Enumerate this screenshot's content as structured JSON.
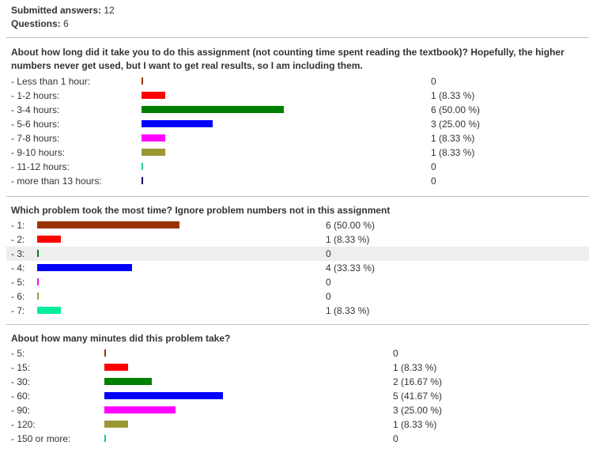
{
  "summary": {
    "submitted_label": "Submitted answers:",
    "submitted_value": "12",
    "questions_label": "Questions:",
    "questions_value": "6"
  },
  "colors": [
    "#993300",
    "#ff0000",
    "#008000",
    "#0000ff",
    "#ff00ff",
    "#999933",
    "#00ffcc",
    "#000066"
  ],
  "questions": [
    {
      "title": "About how long did it take you to do this assignment (not counting time spent reading the textbook)? Hopefully, the higher numbers never get used, but I want to get real results, so I am including them.",
      "answers": [
        {
          "label": "- Less than 1 hour:",
          "count": "0",
          "fraction": 0,
          "color": "#993300"
        },
        {
          "label": "- 1-2 hours:",
          "count": "1 (8.33 %)",
          "fraction": 0.0833,
          "color": "#ff0000"
        },
        {
          "label": "- 3-4 hours:",
          "count": "6 (50.00 %)",
          "fraction": 0.5,
          "color": "#008000"
        },
        {
          "label": "- 5-6 hours:",
          "count": "3 (25.00 %)",
          "fraction": 0.25,
          "color": "#0000ff"
        },
        {
          "label": "- 7-8 hours:",
          "count": "1 (8.33 %)",
          "fraction": 0.0833,
          "color": "#ff00ff"
        },
        {
          "label": "- 9-10 hours:",
          "count": "1 (8.33 %)",
          "fraction": 0.0833,
          "color": "#999933"
        },
        {
          "label": "- 11-12 hours:",
          "count": "0",
          "fraction": 0,
          "color": "#33ccaa"
        },
        {
          "label": "- more than 13 hours:",
          "count": "0",
          "fraction": 0,
          "color": "#000066"
        }
      ]
    },
    {
      "title": "Which problem took the most time? Ignore problem numbers not in this assignment",
      "answers": [
        {
          "label": "- 1:",
          "count": "6 (50.00 %)",
          "fraction": 0.5,
          "color": "#993300"
        },
        {
          "label": "- 2:",
          "count": "1 (8.33 %)",
          "fraction": 0.0833,
          "color": "#ff0000"
        },
        {
          "label": "- 3:",
          "count": "0",
          "fraction": 0,
          "color": "#008000",
          "shaded": true
        },
        {
          "label": "- 4:",
          "count": "4 (33.33 %)",
          "fraction": 0.3333,
          "color": "#0000ff"
        },
        {
          "label": "- 5:",
          "count": "0",
          "fraction": 0,
          "color": "#ff00ff"
        },
        {
          "label": "- 6:",
          "count": "0",
          "fraction": 0,
          "color": "#999933"
        },
        {
          "label": "- 7:",
          "count": "1 (8.33 %)",
          "fraction": 0.0833,
          "color": "#00ee99"
        }
      ]
    },
    {
      "title": "About how many minutes did this problem take?",
      "answers": [
        {
          "label": "- 5:",
          "count": "0",
          "fraction": 0,
          "color": "#993300"
        },
        {
          "label": "- 15:",
          "count": "1 (8.33 %)",
          "fraction": 0.0833,
          "color": "#ff0000"
        },
        {
          "label": "- 30:",
          "count": "2 (16.67 %)",
          "fraction": 0.1667,
          "color": "#008000"
        },
        {
          "label": "- 60:",
          "count": "5 (41.67 %)",
          "fraction": 0.4167,
          "color": "#0000ff"
        },
        {
          "label": "- 90:",
          "count": "3 (25.00 %)",
          "fraction": 0.25,
          "color": "#ff00ff"
        },
        {
          "label": "- 120:",
          "count": "1 (8.33 %)",
          "fraction": 0.0833,
          "color": "#999933"
        },
        {
          "label": "- 150 or more:",
          "count": "0",
          "fraction": 0,
          "color": "#00ccaa"
        }
      ]
    }
  ]
}
